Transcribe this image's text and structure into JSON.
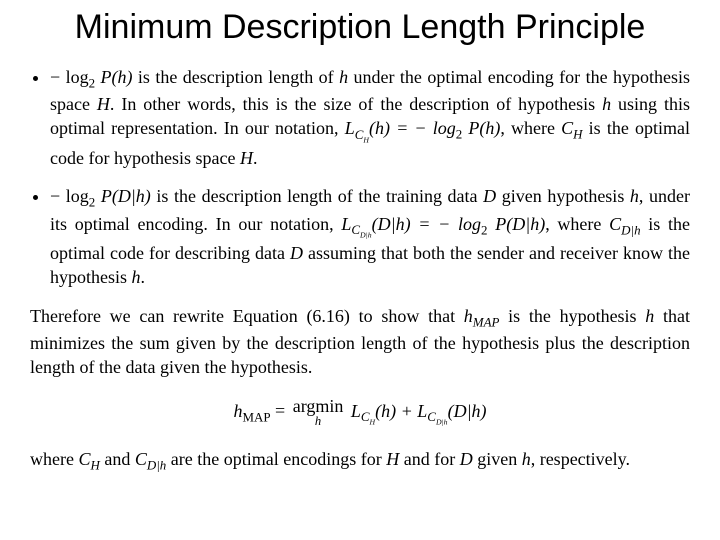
{
  "title": "Minimum Description Length Principle",
  "bullet1": {
    "lead_expr": "− log",
    "lead_sub": "2",
    "lead_tail": " P(h)",
    "text_a": " is the description length of ",
    "h": "h",
    "text_b": " under the optimal encoding for the hypothesis space ",
    "H": "H",
    "text_c": ". In other words, this is the size of the description of hypothesis ",
    "text_d": " using this optimal representation. In our notation, ",
    "Lch": "L",
    "Lch_sub": "C",
    "Lch_subsub": "H",
    "Lch_arg": "(h) = − log",
    "log2sub": "2",
    "Lch_arg2": " P(h)",
    "text_e": ", where ",
    "CH": "C",
    "CH_sub": "H",
    "text_f": " is the optimal code for hypothesis space ",
    "text_g": "."
  },
  "bullet2": {
    "lead_expr": "− log",
    "lead_sub": "2",
    "lead_tail": " P(D|h)",
    "text_a": " is the description length of the training data ",
    "D": "D",
    "text_b": " given hypothesis ",
    "h": "h",
    "text_c": ", under its optimal encoding. In our notation, ",
    "Lcd": "L",
    "Lcd_sub": "C",
    "Lcd_subsub": "D|h",
    "Lcd_arg": "(D|h) = − log",
    "log2sub": "2",
    "Lcd_arg2": " P(D|h)",
    "text_d": ", where ",
    "CDh": "C",
    "CDh_sub": "D|h",
    "text_e": " is the optimal code for describing data ",
    "text_f": " assuming that both the sender and receiver know the hypothesis ",
    "text_g": "."
  },
  "therefore": {
    "a": "Therefore we can rewrite Equation (6.16) to show that ",
    "hmap": "h",
    "hmap_sub": "MAP",
    "b": " is the hypothesis ",
    "c": " that minimizes the sum given by the description length of the hypothesis plus the description length of the data given the hypothesis."
  },
  "equation": {
    "lhs_h": "h",
    "lhs_sub": "MAP",
    "eq": " = ",
    "argmin": "argmin",
    "argmin_sub": "h",
    "t1": " L",
    "t1_sub": "C",
    "t1_subsub": "H",
    "t1_arg": "(h) + L",
    "t2_sub": "C",
    "t2_subsub": "D|h",
    "t2_arg": "(D|h)"
  },
  "closing": {
    "a": "where ",
    "CH": "C",
    "CH_sub": "H",
    "b": " and ",
    "CDh": "C",
    "CDh_sub": "D|h",
    "c": " are the optimal encodings for ",
    "H": "H",
    "d": " and for ",
    "D": "D",
    "e": " given ",
    "h": "h",
    "f": ", respectively."
  },
  "style": {
    "title_fontsize": 34,
    "body_fontsize": 18,
    "title_font": "Arial",
    "body_font": "Times New Roman",
    "background": "#ffffff",
    "text_color": "#000000"
  }
}
